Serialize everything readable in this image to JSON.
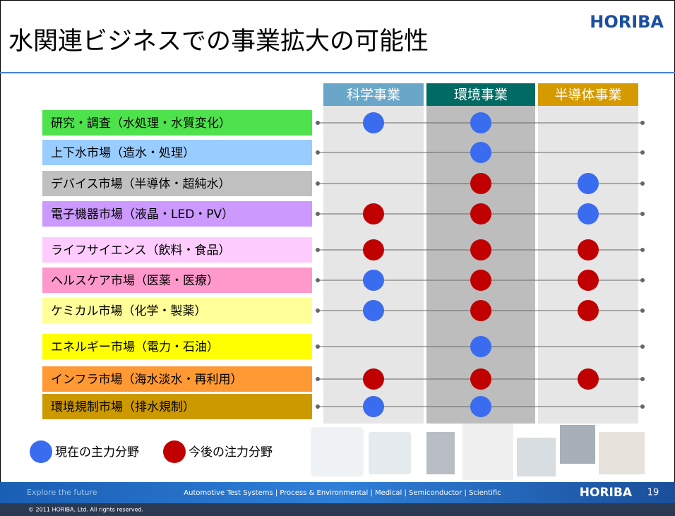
{
  "header": {
    "title": "水関連ビジネスでの事業拡大の可能性",
    "logo": "HORIBA"
  },
  "columns": [
    {
      "label": "科学事業",
      "color": "#6aa6c8"
    },
    {
      "label": "環境事業",
      "color": "#006b63"
    },
    {
      "label": "半導体事業",
      "color": "#d49a00"
    }
  ],
  "rows": [
    {
      "label": "研究・調査（水処理・水質変化）",
      "color": "#4ee24c",
      "cells": [
        "#3a6cf0",
        "#3a6cf0",
        null
      ]
    },
    {
      "label": "上下水市場（造水・処理）",
      "color": "#99ccff",
      "cells": [
        null,
        "#3a6cf0",
        null
      ]
    },
    {
      "label": "デバイス市場（半導体・超純水）",
      "color": "#c0c0c0",
      "cells": [
        null,
        "#c00000",
        "#3a6cf0"
      ]
    },
    {
      "label": "電子機器市場（液晶・LED・PV）",
      "color": "#cc99ff",
      "cells": [
        "#c00000",
        "#c00000",
        "#3a6cf0"
      ]
    },
    {
      "label": "ライフサイエンス（飲料・食品）",
      "color": "#ffccff",
      "cells": [
        "#c00000",
        "#c00000",
        "#c00000"
      ]
    },
    {
      "label": "ヘルスケア市場（医薬・医療）",
      "color": "#ff99cc",
      "cells": [
        "#3a6cf0",
        "#c00000",
        "#c00000"
      ]
    },
    {
      "label": "ケミカル市場（化学・製薬）",
      "color": "#ffff99",
      "cells": [
        "#3a6cf0",
        "#c00000",
        "#c00000"
      ]
    },
    {
      "label": "エネルギー市場（電力・石油）",
      "color": "#ffff00",
      "cells": [
        null,
        "#3a6cf0",
        null
      ]
    },
    {
      "label": "インフラ市場（海水淡水・再利用）",
      "color": "#ff9933",
      "cells": [
        "#c00000",
        "#c00000",
        "#c00000"
      ]
    },
    {
      "label": "環境規制市場（排水規制）",
      "color": "#cc9900",
      "cells": [
        "#3a6cf0",
        "#3a6cf0",
        null
      ]
    }
  ],
  "legend": [
    {
      "label": "現在の主力分野",
      "color": "#3a6cf0"
    },
    {
      "label": "今後の注力分野",
      "color": "#c00000"
    }
  ],
  "footer": {
    "tagline": "Explore the future",
    "divisions": "Automotive Test Systems | Process & Environmental | Medical | Semiconductor | Scientific",
    "logo": "HORIBA",
    "page": "19",
    "copyright": "© 2011 HORIBA, Ltd. All rights reserved."
  }
}
